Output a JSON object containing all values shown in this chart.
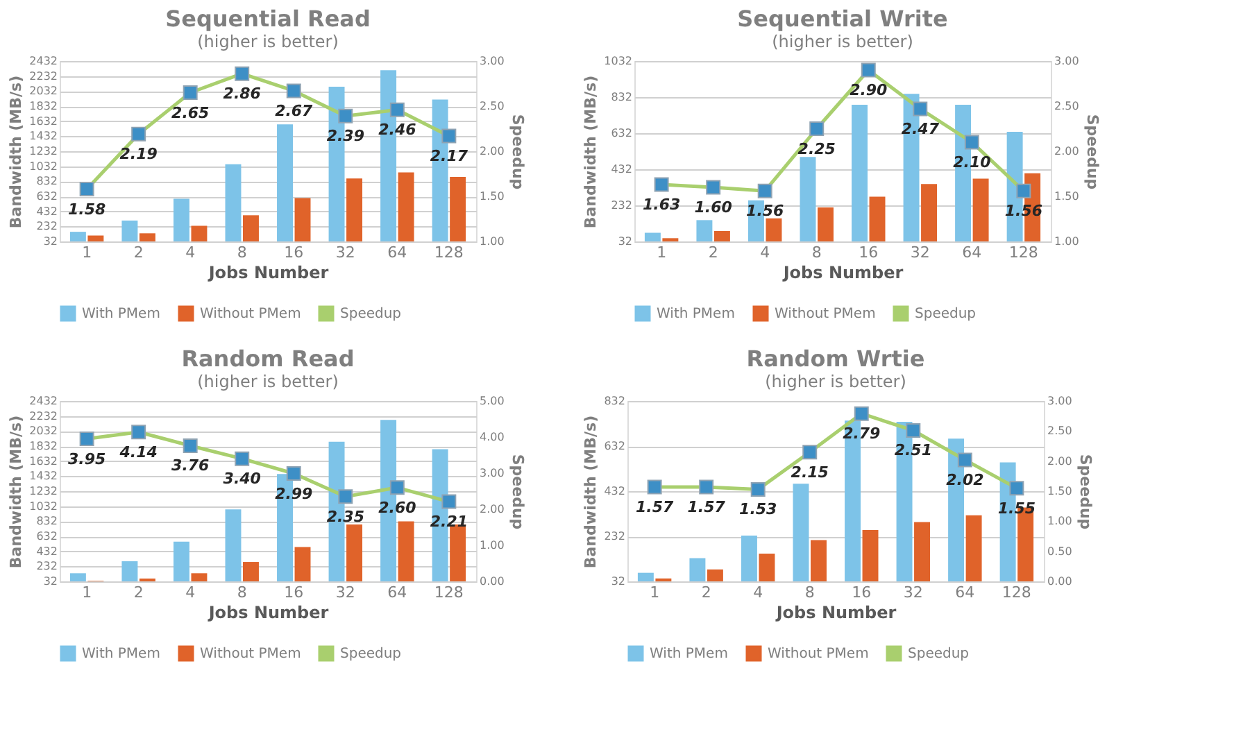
{
  "chart_data": [
    {
      "type": "bar",
      "title": "Sequential Read",
      "subtitle": "(higher is better)",
      "xlabel": "Jobs Number",
      "ylabel": "Bandwidth (MB/s)",
      "y2label": "Speedup",
      "categories": [
        "1",
        "2",
        "4",
        "8",
        "16",
        "32",
        "64",
        "128"
      ],
      "ylim": [
        32,
        2432
      ],
      "yticks": [
        32,
        232,
        432,
        632,
        832,
        1032,
        1232,
        1432,
        1632,
        1832,
        2032,
        2232,
        2432
      ],
      "y2lim": [
        1,
        3
      ],
      "y2ticks": [
        {
          "value": 1,
          "label": "1.00"
        },
        {
          "value": 1.5,
          "label": "1.50"
        },
        {
          "value": 2,
          "label": "2.00"
        },
        {
          "value": 2.5,
          "label": "2.50"
        },
        {
          "value": 3,
          "label": "3.00"
        }
      ],
      "grid": "y",
      "legend": "bottom",
      "marker": "square",
      "series": [
        {
          "name": "With PMem",
          "color": "#7dc3e8",
          "values": [
            160,
            310,
            600,
            1060,
            1590,
            2090,
            2310,
            1920
          ]
        },
        {
          "name": "Without PMem",
          "color": "#e0632a",
          "values": [
            110,
            140,
            240,
            380,
            610,
            870,
            950,
            890
          ]
        },
        {
          "name": "Speedup",
          "type": "line",
          "axis": "y2",
          "color": "#a9cf6e",
          "colors": [
            "#3d8fc6",
            "#3d8fc6",
            "#3d8fc6",
            "#3d8fc6",
            "#3d8fc6",
            "#3d8fc6",
            "#3d8fc6",
            "#3d8fc6"
          ],
          "values": [
            1.58,
            2.19,
            2.65,
            2.86,
            2.67,
            2.39,
            2.46,
            2.17
          ],
          "value_labels": [
            "1.58",
            "2.19",
            "2.65",
            "2.86",
            "2.67",
            "2.39",
            "2.46",
            "2.17"
          ]
        }
      ]
    },
    {
      "type": "bar",
      "title": "Sequential Write",
      "subtitle": "(higher is better)",
      "xlabel": "Jobs Number",
      "ylabel": "Bandwidth (MB/s)",
      "y2label": "Speedup",
      "categories": [
        "1",
        "2",
        "4",
        "8",
        "16",
        "32",
        "64",
        "128"
      ],
      "ylim": [
        32,
        1032
      ],
      "yticks": [
        32,
        232,
        432,
        632,
        832,
        1032
      ],
      "y2lim": [
        1,
        3
      ],
      "y2ticks": [
        {
          "value": 1,
          "label": "1.00"
        },
        {
          "value": 1.5,
          "label": "1.50"
        },
        {
          "value": 2,
          "label": "2.00"
        },
        {
          "value": 2.5,
          "label": "2.50"
        },
        {
          "value": 3,
          "label": "3.00"
        }
      ],
      "grid": "y",
      "legend": "bottom",
      "marker": "square",
      "series": [
        {
          "name": "With PMem",
          "color": "#7dc3e8",
          "values": [
            80,
            150,
            260,
            500,
            790,
            850,
            790,
            640
          ]
        },
        {
          "name": "Without PMem",
          "color": "#e0632a",
          "values": [
            50,
            90,
            160,
            220,
            280,
            350,
            380,
            410
          ]
        },
        {
          "name": "Speedup",
          "type": "line",
          "axis": "y2",
          "color": "#a9cf6e",
          "colors": [
            "#3d8fc6",
            "#3d8fc6",
            "#3d8fc6",
            "#3d8fc6",
            "#3d8fc6",
            "#3d8fc6",
            "#3d8fc6",
            "#3d8fc6"
          ],
          "values": [
            1.63,
            1.6,
            1.56,
            2.25,
            2.9,
            2.47,
            2.1,
            1.56
          ],
          "value_labels": [
            "1.63",
            "1.60",
            "1.56",
            "2.25",
            "2.90",
            "2.47",
            "2.10",
            "1.56"
          ]
        }
      ]
    },
    {
      "type": "bar",
      "title": "Random Read",
      "subtitle": "(higher is better)",
      "xlabel": "Jobs Number",
      "ylabel": "Bandwidth (MB/s)",
      "y2label": "Speedup",
      "categories": [
        "1",
        "2",
        "4",
        "8",
        "16",
        "32",
        "64",
        "128"
      ],
      "ylim": [
        32,
        2432
      ],
      "yticks": [
        32,
        232,
        432,
        632,
        832,
        1032,
        1232,
        1432,
        1632,
        1832,
        2032,
        2232,
        2432
      ],
      "y2lim": [
        0,
        5
      ],
      "y2ticks": [
        {
          "value": 0,
          "label": "0.00"
        },
        {
          "value": 1,
          "label": "1.00"
        },
        {
          "value": 2,
          "label": "2.00"
        },
        {
          "value": 3,
          "label": "3.00"
        },
        {
          "value": 4,
          "label": "4.00"
        },
        {
          "value": 5,
          "label": "5.00"
        }
      ],
      "grid": "y",
      "legend": "bottom",
      "marker": "square",
      "series": [
        {
          "name": "With PMem",
          "color": "#7dc3e8",
          "values": [
            140,
            300,
            560,
            990,
            1460,
            1890,
            2180,
            1790
          ]
        },
        {
          "name": "Without PMem",
          "color": "#e0632a",
          "values": [
            40,
            70,
            140,
            290,
            490,
            790,
            830,
            790
          ]
        },
        {
          "name": "Speedup",
          "type": "line",
          "axis": "y2",
          "color": "#a9cf6e",
          "colors": [
            "#3d8fc6",
            "#3d8fc6",
            "#3d8fc6",
            "#3d8fc6",
            "#3d8fc6",
            "#3d8fc6",
            "#3d8fc6",
            "#3d8fc6"
          ],
          "values": [
            3.95,
            4.14,
            3.76,
            3.4,
            2.99,
            2.35,
            2.6,
            2.21
          ],
          "value_labels": [
            "3.95",
            "4.14",
            "3.76",
            "3.40",
            "2.99",
            "2.35",
            "2.60",
            "2.21"
          ]
        }
      ]
    },
    {
      "type": "bar",
      "title": "Random Wrtie",
      "subtitle": "(higher is better)",
      "xlabel": "Jobs Number",
      "ylabel": "Bandwidth (MB/s)",
      "y2label": "Speedup",
      "categories": [
        "1",
        "2",
        "4",
        "8",
        "16",
        "32",
        "64",
        "128"
      ],
      "ylim": [
        32,
        832
      ],
      "yticks": [
        32,
        232,
        432,
        632,
        832
      ],
      "y2lim": [
        0,
        3
      ],
      "y2ticks": [
        {
          "value": 0,
          "label": "0.00"
        },
        {
          "value": 0.5,
          "label": "0.50"
        },
        {
          "value": 1,
          "label": "1.00"
        },
        {
          "value": 1.5,
          "label": "1.50"
        },
        {
          "value": 2,
          "label": "2.00"
        },
        {
          "value": 2.5,
          "label": "2.50"
        },
        {
          "value": 3,
          "label": "3.00"
        }
      ],
      "grid": "y",
      "legend": "bottom",
      "marker": "square",
      "series": [
        {
          "name": "With PMem",
          "color": "#7dc3e8",
          "values": [
            70,
            135,
            235,
            465,
            745,
            740,
            665,
            560
          ]
        },
        {
          "name": "Without PMem",
          "color": "#e0632a",
          "values": [
            45,
            85,
            155,
            215,
            260,
            295,
            325,
            360
          ]
        },
        {
          "name": "Speedup",
          "type": "line",
          "axis": "y2",
          "color": "#a9cf6e",
          "colors": [
            "#3d8fc6",
            "#3d8fc6",
            "#3d8fc6",
            "#3d8fc6",
            "#3d8fc6",
            "#3d8fc6",
            "#3d8fc6",
            "#3d8fc6"
          ],
          "values": [
            1.57,
            1.57,
            1.53,
            2.15,
            2.79,
            2.51,
            2.02,
            1.55
          ],
          "value_labels": [
            "1.57",
            "1.57",
            "1.53",
            "2.15",
            "2.79",
            "2.51",
            "2.02",
            "1.55"
          ]
        }
      ]
    }
  ]
}
